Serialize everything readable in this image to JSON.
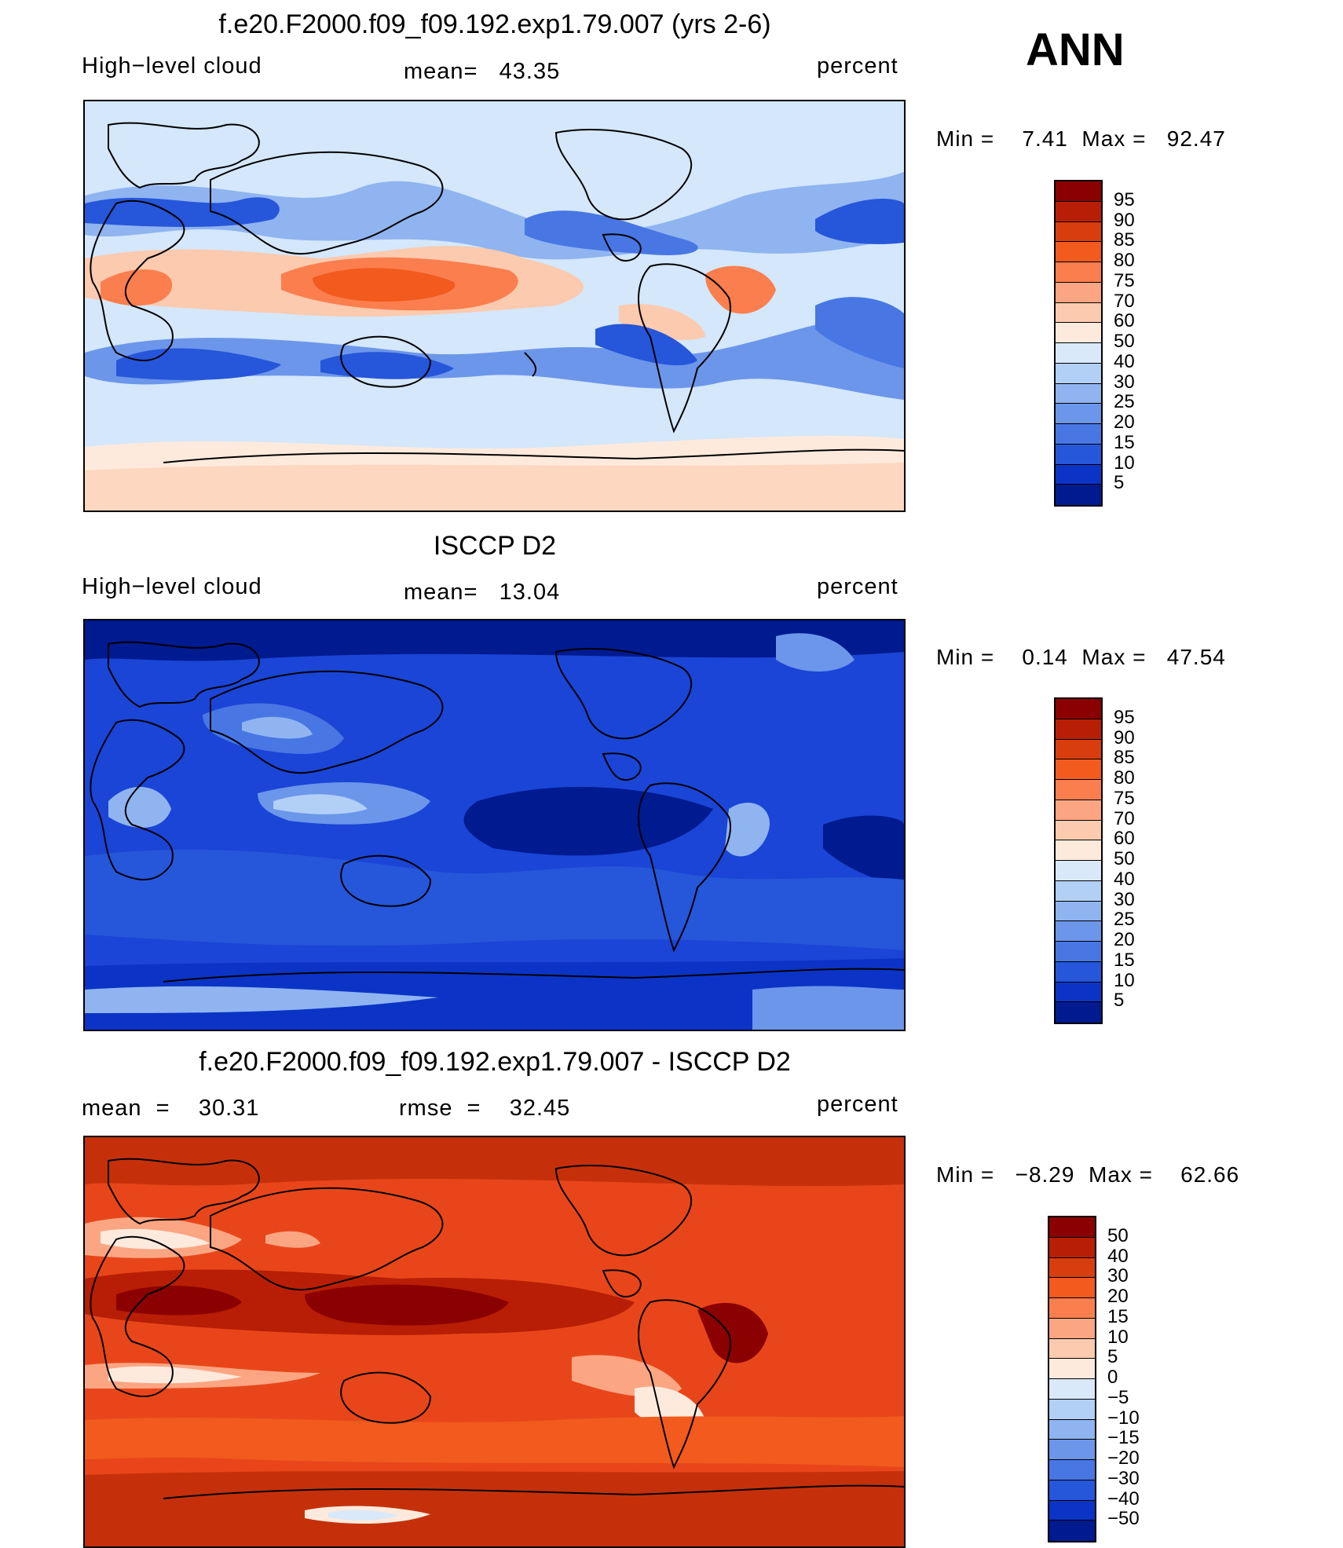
{
  "season": "ANN",
  "panels": [
    {
      "title": "f.e20.F2000.f09_f09.192.exp1.79.007 (yrs 2-6)",
      "left_label": "High−level cloud",
      "center_label": "mean=   43.35",
      "units": "percent",
      "minmax": "Min =    7.41  Max =   92.47",
      "colorbar_labels": [
        "95",
        "90",
        "85",
        "80",
        "75",
        "70",
        "60",
        "50",
        "40",
        "30",
        "25",
        "20",
        "15",
        "10",
        "5"
      ],
      "colorbar_colors": [
        "#8b0000",
        "#b81e05",
        "#d83d0e",
        "#f25a1e",
        "#fb7e4e",
        "#fca582",
        "#fccaae",
        "#feeadc",
        "#d9e9f9",
        "#b2cff5",
        "#8fb4f0",
        "#6c96ea",
        "#4877e4",
        "#2656d9",
        "#0b34c6",
        "#001a90"
      ],
      "bg": "#d4e7fb"
    },
    {
      "title": "ISCCP D2",
      "left_label": "High−level cloud",
      "center_label": "mean=   13.04",
      "units": "percent",
      "minmax": "Min =    0.14  Max =   47.54",
      "colorbar_labels": [
        "95",
        "90",
        "85",
        "80",
        "75",
        "70",
        "60",
        "50",
        "40",
        "30",
        "25",
        "20",
        "15",
        "10",
        "5"
      ],
      "colorbar_colors": [
        "#8b0000",
        "#b81e05",
        "#d83d0e",
        "#f25a1e",
        "#fb7e4e",
        "#fca582",
        "#fccaae",
        "#feeadc",
        "#d9e9f9",
        "#b2cff5",
        "#8fb4f0",
        "#6c96ea",
        "#4877e4",
        "#2656d9",
        "#0b34c6",
        "#001a90"
      ],
      "bg": "#1a45d6"
    },
    {
      "title": "f.e20.F2000.f09_f09.192.exp1.79.007 - ISCCP D2",
      "left_label": "mean  =    30.31",
      "center_label": "rmse  =    32.45",
      "units": "percent",
      "minmax": "Min =   −8.29  Max =    62.66",
      "colorbar_labels": [
        "50",
        "40",
        "30",
        "20",
        "15",
        "10",
        "5",
        "0",
        "−5",
        "−10",
        "−15",
        "−20",
        "−30",
        "−40",
        "−50"
      ],
      "colorbar_colors": [
        "#8b0000",
        "#b81e05",
        "#d83d0e",
        "#f25a1e",
        "#fb7e4e",
        "#fca582",
        "#fccaae",
        "#feeadc",
        "#d9e9f9",
        "#b2cff5",
        "#8fb4f0",
        "#6c96ea",
        "#4877e4",
        "#2656d9",
        "#0b34c6",
        "#001a90"
      ],
      "bg": "#e8461a"
    }
  ]
}
